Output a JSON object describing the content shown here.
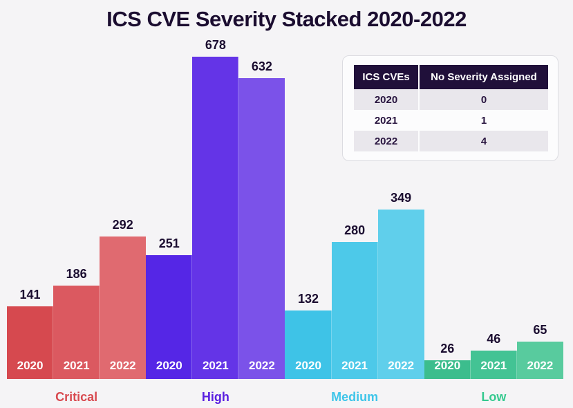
{
  "title": "ICS CVE Severity Stacked 2020-2022",
  "colors": {
    "background": "#f5f4f6",
    "title_text": "#1b0d30",
    "value_label_text": "#1b0d30",
    "year_label_text": "#ffffff",
    "table_header_bg": "#20103a",
    "table_header_text": "#ffffff",
    "table_row_alt_bg": "#e9e7ec",
    "table_row_bg": "#fcfcfd",
    "card_border": "#dcdce1"
  },
  "side_table": {
    "headers": [
      "ICS CVEs",
      "No Severity Assigned"
    ],
    "rows": [
      {
        "year": "2020",
        "count": "0"
      },
      {
        "year": "2021",
        "count": "1"
      },
      {
        "year": "2022",
        "count": "4"
      }
    ]
  },
  "chart_data": {
    "type": "bar",
    "title": "ICS CVE Severity Stacked 2020-2022",
    "categories": [
      "Critical",
      "High",
      "Medium",
      "Low"
    ],
    "years": [
      "2020",
      "2021",
      "2022"
    ],
    "legend": "none",
    "axes": "none; values shown as data labels above each bar, years inside bar bases",
    "groups": [
      {
        "label": "Critical",
        "label_color": "#d84a50",
        "bars": [
          {
            "year": "2020",
            "value": 141,
            "color": "#d6494f"
          },
          {
            "year": "2021",
            "value": 186,
            "color": "#db5960"
          },
          {
            "year": "2022",
            "value": 292,
            "color": "#e06a70"
          }
        ]
      },
      {
        "label": "High",
        "label_color": "#5a1fe0",
        "bars": [
          {
            "year": "2020",
            "value": 251,
            "color": "#5526e6"
          },
          {
            "year": "2021",
            "value": 678,
            "color": "#6434e7"
          },
          {
            "year": "2022",
            "value": 632,
            "color": "#7b52e9"
          }
        ]
      },
      {
        "label": "Medium",
        "label_color": "#3fc5e9",
        "bars": [
          {
            "year": "2020",
            "value": 132,
            "color": "#3ec3e7"
          },
          {
            "year": "2021",
            "value": 280,
            "color": "#4dc9e9"
          },
          {
            "year": "2022",
            "value": 349,
            "color": "#60cfeb"
          }
        ]
      },
      {
        "label": "Low",
        "label_color": "#35c98f",
        "bars": [
          {
            "year": "2020",
            "value": 26,
            "color": "#3cbd8d"
          },
          {
            "year": "2021",
            "value": 46,
            "color": "#43c394"
          },
          {
            "year": "2022",
            "value": 65,
            "color": "#58cb9e"
          }
        ]
      }
    ]
  }
}
